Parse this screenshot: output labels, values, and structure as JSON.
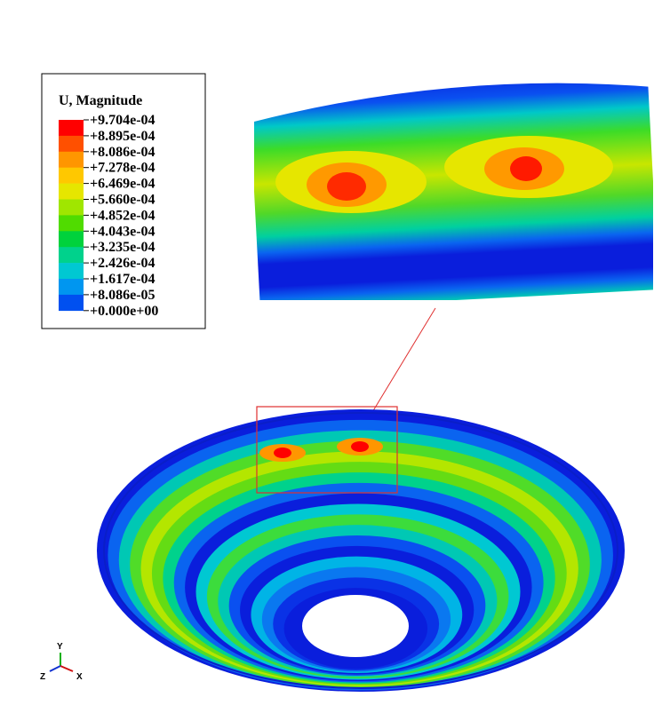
{
  "legend": {
    "title": "U, Magnitude",
    "labels": [
      "+9.704e-04",
      "+8.895e-04",
      "+8.086e-04",
      "+7.278e-04",
      "+6.469e-04",
      "+5.660e-04",
      "+4.852e-04",
      "+4.043e-04",
      "+3.235e-04",
      "+2.426e-04",
      "+1.617e-04",
      "+8.086e-05",
      "+0.000e+00"
    ]
  },
  "triad": {
    "y": "Y",
    "z": "Z",
    "x": "X"
  }
}
